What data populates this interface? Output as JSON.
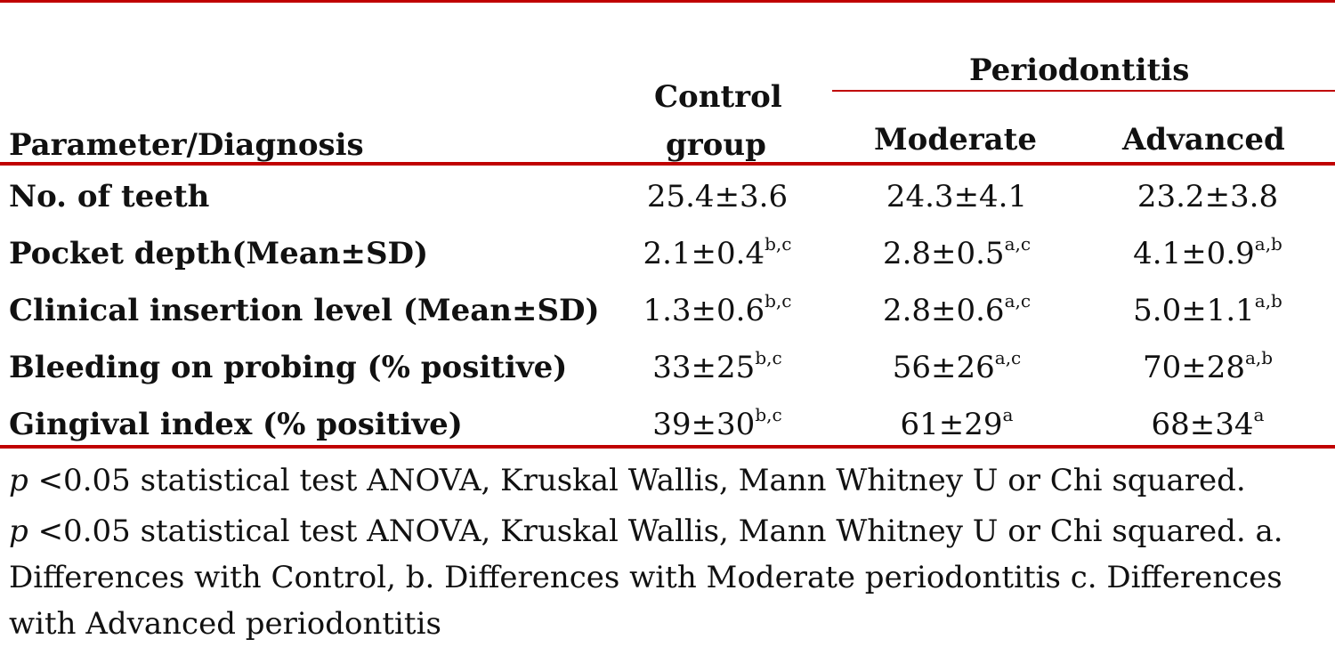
{
  "table": {
    "header": {
      "parameter": "Parameter/Diagnosis",
      "control_line1": "Control",
      "control_line2": "group",
      "periodontitis": "Periodontitis",
      "moderate": "Moderate",
      "advanced": "Advanced"
    },
    "rows": [
      {
        "label": "No. of teeth",
        "control": "25.4±3.6",
        "control_sup": "",
        "moderate": "24.3±4.1",
        "moderate_sup": "",
        "advanced": "23.2±3.8",
        "advanced_sup": ""
      },
      {
        "label": "Pocket depth(Mean±SD)",
        "control": "2.1±0.4",
        "control_sup": "b,c",
        "moderate": "2.8±0.5",
        "moderate_sup": "a,c",
        "advanced": "4.1±0.9",
        "advanced_sup": "a,b"
      },
      {
        "label": "Clinical insertion level (Mean±SD)",
        "control": "1.3±0.6",
        "control_sup": "b,c",
        "moderate": "2.8±0.6",
        "moderate_sup": "a,c",
        "advanced": "5.0±1.1",
        "advanced_sup": "a,b"
      },
      {
        "label": "Bleeding on probing (% positive)",
        "control": "33±25",
        "control_sup": "b,c",
        "moderate": "56±26",
        "moderate_sup": "a,c",
        "advanced": "70±28",
        "advanced_sup": "a,b"
      },
      {
        "label": "Gingival index (% positive)",
        "control": "39±30",
        "control_sup": "b,c",
        "moderate": "61±29",
        "moderate_sup": "a",
        "advanced": "68±34",
        "advanced_sup": "a"
      }
    ]
  },
  "footnotes": {
    "p": "p",
    "line1": " <0.05 statistical test ANOVA, Kruskal Wallis, Mann Whitney U or Chi squared.",
    "line2_p": "p",
    "line2": " <0.05 statistical test ANOVA, Kruskal Wallis, Mann Whitney U or Chi squared. a.",
    "line3": "Differences with Control, b. Differences with Moderate periodontitis c. Differences",
    "line4": "with Advanced periodontitis"
  },
  "colors": {
    "rule": "#c00000"
  }
}
